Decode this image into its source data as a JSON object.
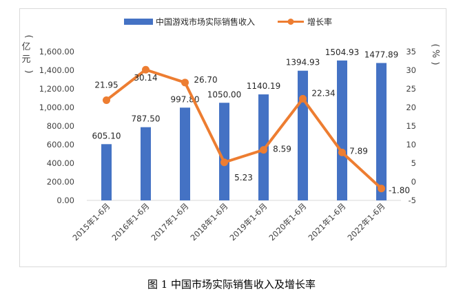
{
  "caption": "图 1 中国市场实际销售收入及增长率",
  "chart_data": {
    "type": "bar",
    "categories": [
      "2015年1-6月",
      "2016年1-6月",
      "2017年1-6月",
      "2018年1-6月",
      "2019年1-6月",
      "2020年1-6月",
      "2021年1-6月",
      "2022年1-6月"
    ],
    "series": [
      {
        "name": "中国游戏市场实际销售收入",
        "type": "bar",
        "axis": "left",
        "color": "#4472C4",
        "values": [
          605.1,
          787.5,
          997.8,
          1050.0,
          1140.19,
          1394.93,
          1504.93,
          1477.89
        ],
        "labels": [
          "605.10",
          "787.50",
          "997.80",
          "1050.00",
          "1140.19",
          "1394.93",
          "1504.93",
          "1477.89"
        ]
      },
      {
        "name": "增长率",
        "type": "line",
        "axis": "right",
        "color": "#ED7D31",
        "values": [
          21.95,
          30.14,
          26.7,
          5.23,
          8.59,
          22.34,
          7.89,
          -1.8
        ],
        "labels": [
          "21.95",
          "30.14",
          "26.70",
          "5.23",
          "8.59",
          "22.34",
          "7.89",
          "-1.80"
        ]
      }
    ],
    "y_left": {
      "label": "亿元",
      "range": [
        0,
        1600
      ],
      "ticks": [
        "0.00",
        "200.00",
        "400.00",
        "600.00",
        "800.00",
        "1,000.00",
        "1,200.00",
        "1,400.00",
        "1,600.00"
      ]
    },
    "y_right": {
      "label": "%",
      "range": [
        -5,
        35
      ],
      "ticks": [
        "-5",
        "0",
        "5",
        "10",
        "15",
        "20",
        "25",
        "30",
        "35"
      ]
    },
    "legend_position": "top",
    "grid": false
  }
}
